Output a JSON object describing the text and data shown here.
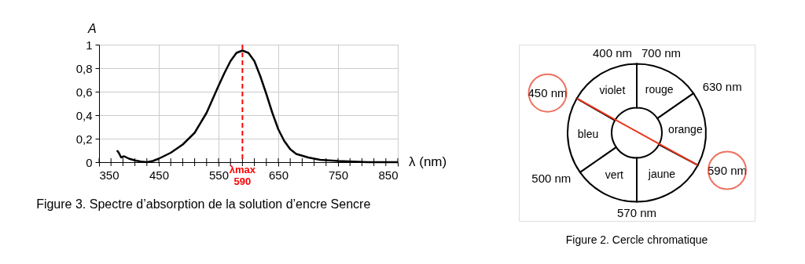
{
  "chart_data": [
    {
      "type": "line",
      "title": "Figure 3. Spectre d’absorption de la solution d’encre Sencre",
      "xlabel": "λ (nm)",
      "ylabel": "A",
      "x": [
        380,
        383,
        387,
        392,
        400,
        410,
        420,
        430,
        440,
        450,
        470,
        490,
        510,
        530,
        550,
        560,
        570,
        580,
        590,
        600,
        610,
        620,
        630,
        640,
        650,
        660,
        670,
        680,
        700,
        720,
        750,
        800,
        850
      ],
      "series": [
        {
          "color": "#000000",
          "values": [
            0.1,
            0.08,
            0.04,
            0.05,
            0.03,
            0.015,
            0.005,
            0.0,
            0.01,
            0.03,
            0.08,
            0.15,
            0.25,
            0.42,
            0.65,
            0.76,
            0.86,
            0.93,
            0.95,
            0.93,
            0.86,
            0.73,
            0.58,
            0.42,
            0.28,
            0.18,
            0.11,
            0.07,
            0.04,
            0.02,
            0.01,
            0.0,
            0.0
          ]
        }
      ],
      "xlim": [
        350,
        850
      ],
      "ylim": [
        0,
        1
      ],
      "xticks": [
        350,
        {
          "value": 370,
          "label": null
        },
        {
          "value": 390,
          "label": null
        },
        {
          "value": 410,
          "label": null
        },
        {
          "value": 430,
          "label": null
        },
        450,
        {
          "value": 470,
          "label": null
        },
        {
          "value": 490,
          "label": null
        },
        {
          "value": 510,
          "label": null
        },
        {
          "value": 530,
          "label": null
        },
        550,
        {
          "value": 570,
          "label": null
        },
        {
          "value": 590,
          "label": null
        },
        {
          "value": 610,
          "label": null
        },
        {
          "value": 630,
          "label": null
        },
        650,
        {
          "value": 670,
          "label": null
        },
        {
          "value": 690,
          "label": null
        },
        {
          "value": 710,
          "label": null
        },
        {
          "value": 730,
          "label": null
        },
        750,
        {
          "value": 770,
          "label": null
        },
        {
          "value": 790,
          "label": null
        },
        {
          "value": 810,
          "label": null
        },
        {
          "value": 830,
          "label": null
        },
        850
      ],
      "yticks": [
        0,
        {
          "value": 0.2,
          "label": "0,2"
        },
        {
          "value": 0.4,
          "label": "0,4"
        },
        {
          "value": 0.6,
          "label": "0,6"
        },
        {
          "value": 0.8,
          "label": "0,8"
        },
        1
      ],
      "ref_lines": [
        {
          "axis": "x",
          "value": 590,
          "label": "λmax 590",
          "color": "#ff0000",
          "line_style": "dashed"
        }
      ],
      "grid": true,
      "line_style": "solid",
      "marker": "none"
    },
    {
      "type": "donut",
      "title": "Figure 2. Cercle chromatique",
      "categories": [
        "rouge",
        "orange",
        "jaune",
        "vert",
        "bleu",
        "violet"
      ],
      "values": [
        15.3,
        17.5,
        17.2,
        15.3,
        18.0,
        16.7
      ],
      "colors": [
        "#ffffff",
        "#ffffff",
        "#ffffff",
        "#ffffff",
        "#ffffff",
        "#ffffff"
      ],
      "annotations": [
        "630 nm",
        "590 nm",
        "570 nm",
        "500 nm",
        "450 nm",
        "400 nm",
        "700 nm"
      ]
    }
  ]
}
